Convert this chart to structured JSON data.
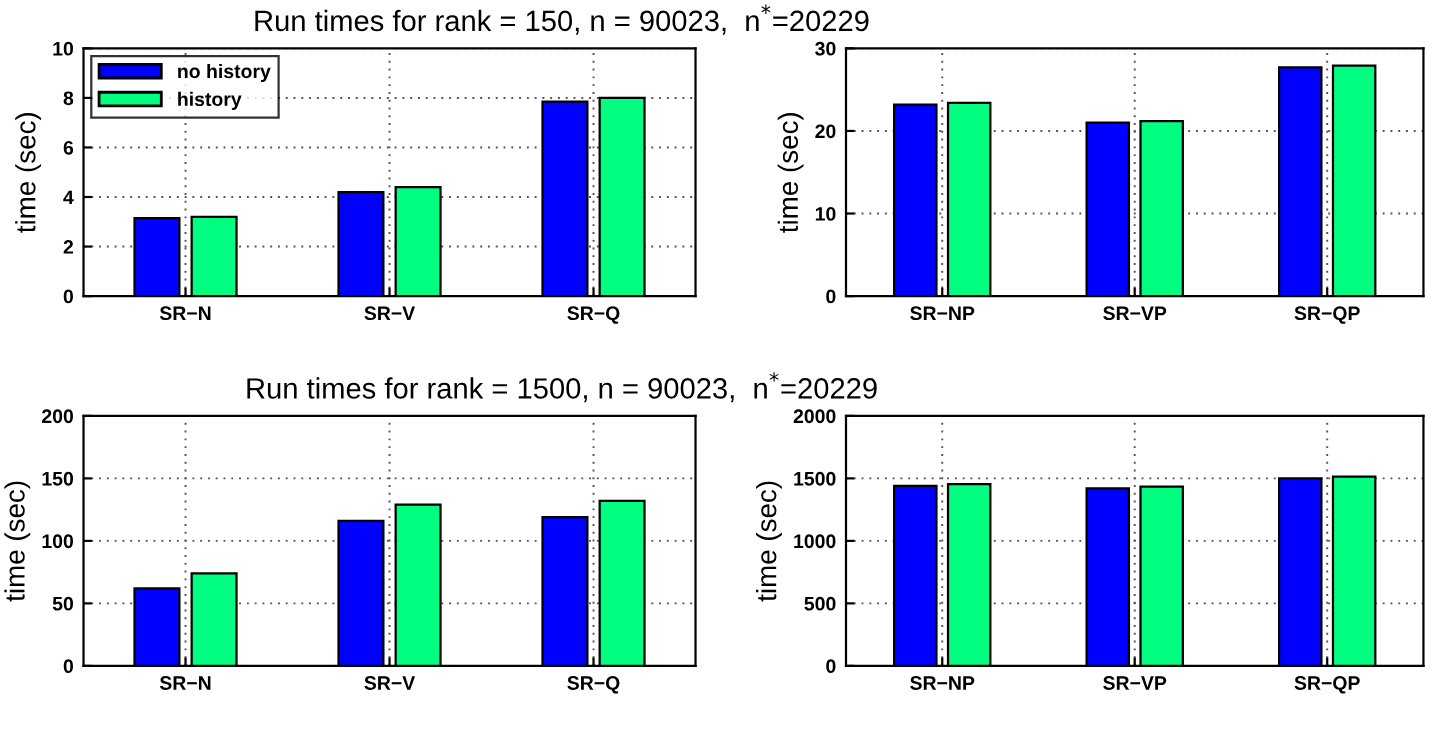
{
  "chart_data": [
    {
      "type": "bar",
      "title": "Run times for rank = 150, n = 90023,  n$^{*}$=20229",
      "ylabel": "time (sec)",
      "categories": [
        "SR−N",
        "SR−V",
        "SR−Q"
      ],
      "ylim": [
        0,
        10
      ],
      "yticks": [
        0,
        2,
        4,
        6,
        8,
        10
      ],
      "grid": true,
      "legend": "top left",
      "series": [
        {
          "name": "no history",
          "color": "#0000ff",
          "values": [
            3.15,
            4.2,
            7.85
          ]
        },
        {
          "name": "history",
          "color": "#00ff80",
          "values": [
            3.2,
            4.4,
            8.0
          ]
        }
      ]
    },
    {
      "type": "bar",
      "ylabel": "time (sec)",
      "categories": [
        "SR−NP",
        "SR−VP",
        "SR−QP"
      ],
      "ylim": [
        0,
        30
      ],
      "yticks": [
        0,
        10,
        20,
        30
      ],
      "grid": true,
      "series": [
        {
          "color": "#0000ff",
          "values": [
            23.2,
            21.0,
            27.7
          ]
        },
        {
          "color": "#00ff80",
          "values": [
            23.4,
            21.2,
            27.9
          ]
        }
      ]
    },
    {
      "type": "bar",
      "title": "Run times for rank = 1500, n = 90023,  n$^{*}$=20229",
      "ylabel": "time (sec)",
      "categories": [
        "SR−N",
        "SR−V",
        "SR−Q"
      ],
      "ylim": [
        0,
        200
      ],
      "yticks": [
        0,
        50,
        100,
        150,
        200
      ],
      "grid": true,
      "series": [
        {
          "color": "#0000ff",
          "values": [
            62,
            116,
            119
          ]
        },
        {
          "color": "#00ff80",
          "values": [
            74,
            129,
            132
          ]
        }
      ]
    },
    {
      "type": "bar",
      "ylabel": "time (sec)",
      "categories": [
        "SR−NP",
        "SR−VP",
        "SR−QP"
      ],
      "ylim": [
        0,
        2000
      ],
      "yticks": [
        0,
        500,
        1000,
        1500,
        2000
      ],
      "grid": true,
      "series": [
        {
          "color": "#0000ff",
          "values": [
            1440,
            1420,
            1500
          ]
        },
        {
          "color": "#00ff80",
          "values": [
            1455,
            1435,
            1515
          ]
        }
      ]
    }
  ]
}
